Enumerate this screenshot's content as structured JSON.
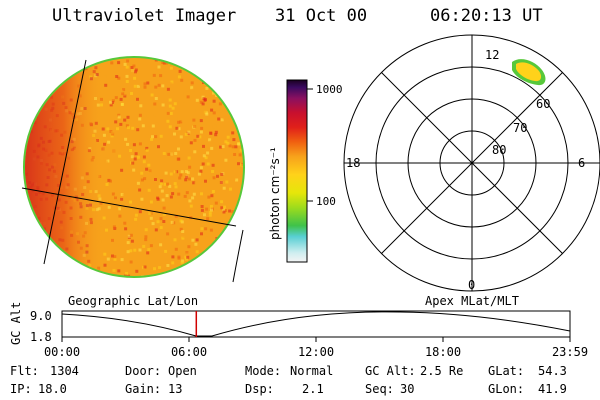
{
  "header": {
    "title": "Ultraviolet Imager",
    "date": "31 Oct 00",
    "time": "06:20:13 UT"
  },
  "colorbar": {
    "unit_label": "photon cm⁻²s⁻¹",
    "ticks": [
      {
        "value": 1000,
        "label": "1000"
      },
      {
        "value": 100,
        "label": "100"
      }
    ]
  },
  "polar_plot": {
    "mlt_labels": {
      "top": "12",
      "left": "18",
      "right": "6",
      "bottom": "0"
    },
    "lat_rings": [
      "80",
      "70",
      "60"
    ]
  },
  "orbit_plot": {
    "left_label": "Geographic Lat/Lon",
    "right_label": "Apex MLat/MLT",
    "y_axis_label": "GC Alt",
    "y_ticks": [
      "9.0",
      "1.8"
    ],
    "x_ticks": [
      "00:00",
      "06:00",
      "12:00",
      "18:00",
      "23:59"
    ],
    "current_time_hours": 6.34
  },
  "status": {
    "flt_label": "Flt:",
    "flt_value": "1304",
    "ip_label": "IP:",
    "ip_value": "18.0",
    "door_label": "Door:",
    "door_value": "Open",
    "gain_label": "Gain:",
    "gain_value": "13",
    "mode_label": "Mode:",
    "mode_value": "Normal",
    "dsp_label": "Dsp:",
    "dsp_value": "2.1",
    "gcalt_label": "GC Alt:",
    "gcalt_value": "2.5 Re",
    "seq_label": "Seq:",
    "seq_value": "30",
    "glat_label": "GLat:",
    "glat_value": "54.3",
    "glon_label": "GLon:",
    "glon_value": "41.9"
  },
  "colors": {
    "earth_base": "#f7a21b",
    "earth_dark": "#d41a14",
    "limb": "#57c83a",
    "marker": "#d00000"
  }
}
